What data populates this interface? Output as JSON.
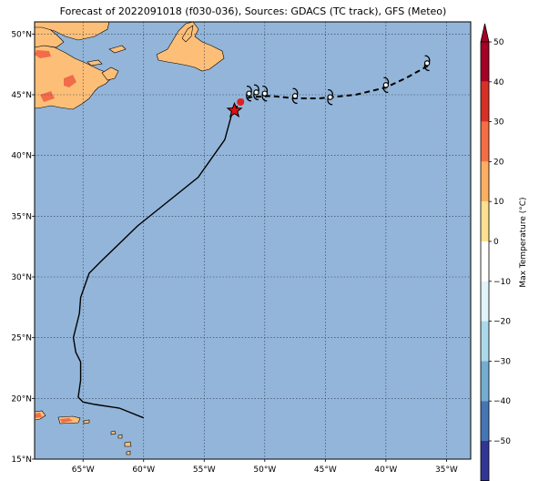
{
  "title": "Forecast of 2022091018 (f030-036), Sources: GDACS (TC track), GFS (Meteo)",
  "map": {
    "lon_range": [
      -69,
      -33
    ],
    "lat_range": [
      15,
      51
    ],
    "lon_ticks": [
      "65°W",
      "60°W",
      "55°W",
      "50°W",
      "45°W",
      "40°W",
      "35°W"
    ],
    "lat_ticks": [
      "15°N",
      "20°N",
      "25°N",
      "30°N",
      "35°N",
      "40°N",
      "45°N",
      "50°N"
    ],
    "ocean_color": "#93b5d9",
    "land_color": "#fdbf78",
    "warm_color": "#f26c4a"
  },
  "track": {
    "past": [
      [
        -60.0,
        18.4
      ],
      [
        -62.0,
        19.2
      ],
      [
        -64.0,
        19.5
      ],
      [
        -65.0,
        19.7
      ],
      [
        -65.4,
        20.1
      ],
      [
        -65.2,
        21.5
      ],
      [
        -65.2,
        23.0
      ],
      [
        -65.6,
        23.8
      ],
      [
        -65.8,
        25.0
      ],
      [
        -65.6,
        25.8
      ],
      [
        -65.3,
        27.0
      ],
      [
        -65.2,
        28.3
      ],
      [
        -64.5,
        30.3
      ],
      [
        -63.5,
        31.3
      ],
      [
        -60.5,
        34.2
      ],
      [
        -55.5,
        38.2
      ],
      [
        -53.3,
        41.3
      ],
      [
        -52.7,
        43.5
      ]
    ],
    "forecast": [
      [
        -52.0,
        44.5
      ],
      [
        -51.2,
        44.8
      ],
      [
        -49.5,
        44.9
      ],
      [
        -47.5,
        44.7
      ],
      [
        -45.5,
        44.7
      ],
      [
        -42.5,
        45.0
      ],
      [
        -40.0,
        45.6
      ],
      [
        -38.3,
        46.4
      ],
      [
        -36.5,
        47.4
      ]
    ],
    "storm_symbols": [
      [
        -51.3,
        45.1
      ],
      [
        -50.7,
        45.2
      ],
      [
        -50.0,
        45.1
      ],
      [
        -47.5,
        44.9
      ],
      [
        -44.6,
        44.8
      ],
      [
        -40.0,
        45.8
      ],
      [
        -36.6,
        47.6
      ]
    ],
    "current_position": [
      -52.5,
      43.7
    ]
  },
  "colorbar": {
    "label": "Max Temperature (°C)",
    "ticks": [
      "50",
      "40",
      "30",
      "20",
      "10",
      "0",
      "−10",
      "−20",
      "−30",
      "−40",
      "−50"
    ],
    "colors": [
      "#a50026",
      "#d73027",
      "#f46d43",
      "#fdae61",
      "#fee090",
      "#ffffff",
      "#e0f3f8",
      "#abd9e9",
      "#74add1",
      "#4575b4",
      "#313695"
    ]
  }
}
